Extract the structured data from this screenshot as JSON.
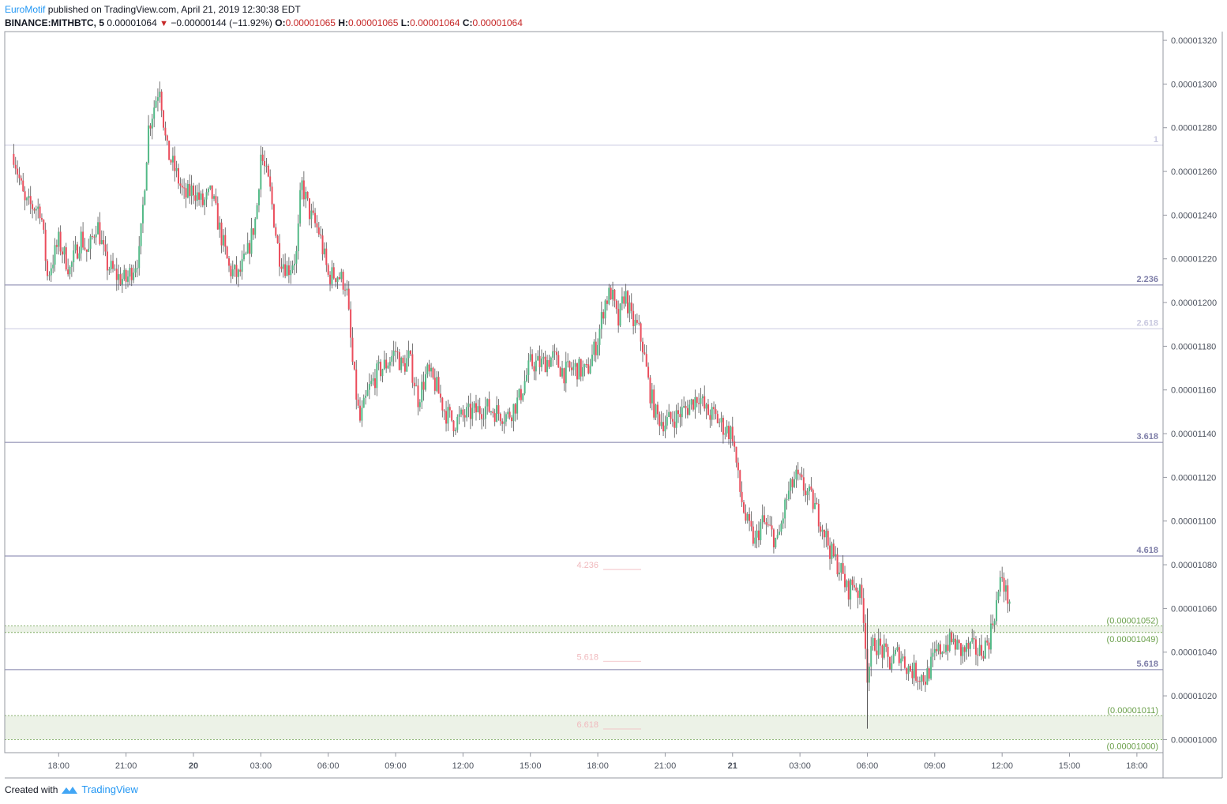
{
  "header": {
    "author": "EuroMotif",
    "published_text": "published on TradingView.com, April 21, 2019 12:30:38 EDT",
    "symbol": "BINANCE:MITHBTC, 5",
    "last": "0.00001064",
    "change": "−0.00000144 (−11.92%)",
    "o_label": "O:",
    "o_value": "0.00001065",
    "h_label": "H:",
    "h_value": "0.00001065",
    "l_label": "L:",
    "l_value": "0.00001064",
    "c_label": "C:",
    "c_value": "0.00001064"
  },
  "footer": {
    "created_with": "Created with",
    "brand": "TradingView"
  },
  "colors": {
    "up": "#53b987",
    "down": "#eb4d5c",
    "fib": "#7e7ea8",
    "zone": "#6a9f4a",
    "axis_text": "#4c525e"
  },
  "chart_data": {
    "type": "candlestick",
    "timeframe": "5",
    "y_axis": {
      "min": 9.94e-06,
      "max": 1.324e-05,
      "ticks": [
        "0.00001000",
        "0.00001020",
        "0.00001040",
        "0.00001060",
        "0.00001080",
        "0.00001100",
        "0.00001120",
        "0.00001140",
        "0.00001160",
        "0.00001180",
        "0.00001200",
        "0.00001220",
        "0.00001240",
        "0.00001260",
        "0.00001280",
        "0.00001300",
        "0.00001320"
      ]
    },
    "x_axis": {
      "ticks": [
        {
          "label": "18:00",
          "h": 18
        },
        {
          "label": "21:00",
          "h": 21
        },
        {
          "label": "20",
          "h": 24
        },
        {
          "label": "03:00",
          "h": 27
        },
        {
          "label": "06:00",
          "h": 30
        },
        {
          "label": "09:00",
          "h": 33
        },
        {
          "label": "12:00",
          "h": 36
        },
        {
          "label": "15:00",
          "h": 39
        },
        {
          "label": "18:00",
          "h": 42
        },
        {
          "label": "21:00",
          "h": 45
        },
        {
          "label": "21",
          "h": 48
        },
        {
          "label": "03:00",
          "h": 51
        },
        {
          "label": "06:00",
          "h": 54
        },
        {
          "label": "09:00",
          "h": 57
        },
        {
          "label": "12:00",
          "h": 60
        },
        {
          "label": "15:00",
          "h": 63
        },
        {
          "label": "18:00",
          "h": 66
        }
      ],
      "bold_labels": [
        "20",
        "21"
      ]
    },
    "fib_levels": [
      {
        "label": "1",
        "price": 1.272e-05,
        "faint": true
      },
      {
        "label": "2.236",
        "price": 1.208e-05,
        "faint": false
      },
      {
        "label": "2.618",
        "price": 1.188e-05,
        "faint": true
      },
      {
        "label": "3.618",
        "price": 1.136e-05,
        "faint": false
      },
      {
        "label": "4.618",
        "price": 1.084e-05,
        "faint": false
      },
      {
        "label": "5.618",
        "price": 1.032e-05,
        "faint": false
      }
    ],
    "mini_fib_labels": [
      {
        "label": "4.236",
        "price": 1.08e-05
      },
      {
        "label": "5.618",
        "price": 1.038e-05
      },
      {
        "label": "6.618",
        "price": 1.007e-05
      }
    ],
    "zones": [
      {
        "top_label": "(0.00001052)",
        "bottom_label": "(0.00001049)",
        "top": 1.052e-05,
        "bottom": 1.049e-05
      },
      {
        "top_label": "(0.00001011)",
        "bottom_label": "(0.00001000)",
        "top": 1.011e-05,
        "bottom": 1e-05
      }
    ],
    "price_path_note": "approximate close path by hour",
    "path_points": [
      {
        "h": 16.0,
        "p": 1.268e-05
      },
      {
        "h": 16.5,
        "p": 1.245e-05
      },
      {
        "h": 17.2,
        "p": 1.243e-05
      },
      {
        "h": 17.5,
        "p": 1.212e-05
      },
      {
        "h": 18.0,
        "p": 1.228e-05
      },
      {
        "h": 18.5,
        "p": 1.215e-05
      },
      {
        "h": 19.0,
        "p": 1.23e-05
      },
      {
        "h": 19.3,
        "p": 1.222e-05
      },
      {
        "h": 19.7,
        "p": 1.237e-05
      },
      {
        "h": 20.1,
        "p": 1.218e-05
      },
      {
        "h": 20.6,
        "p": 1.212e-05
      },
      {
        "h": 21.0,
        "p": 1.21e-05
      },
      {
        "h": 21.6,
        "p": 1.222e-05
      },
      {
        "h": 22.0,
        "p": 1.28e-05
      },
      {
        "h": 22.5,
        "p": 1.3e-05
      },
      {
        "h": 22.8,
        "p": 1.27e-05
      },
      {
        "h": 23.2,
        "p": 1.26e-05
      },
      {
        "h": 23.6,
        "p": 1.248e-05
      },
      {
        "h": 24.0,
        "p": 1.252e-05
      },
      {
        "h": 24.4,
        "p": 1.245e-05
      },
      {
        "h": 24.8,
        "p": 1.25e-05
      },
      {
        "h": 25.2,
        "p": 1.232e-05
      },
      {
        "h": 25.6,
        "p": 1.215e-05
      },
      {
        "h": 26.0,
        "p": 1.212e-05
      },
      {
        "h": 26.4,
        "p": 1.222e-05
      },
      {
        "h": 26.8,
        "p": 1.24e-05
      },
      {
        "h": 27.0,
        "p": 1.268e-05
      },
      {
        "h": 27.4,
        "p": 1.252e-05
      },
      {
        "h": 27.8,
        "p": 1.222e-05
      },
      {
        "h": 28.2,
        "p": 1.215e-05
      },
      {
        "h": 28.6,
        "p": 1.222e-05
      },
      {
        "h": 28.8,
        "p": 1.255e-05
      },
      {
        "h": 29.2,
        "p": 1.24e-05
      },
      {
        "h": 29.6,
        "p": 1.232e-05
      },
      {
        "h": 30.0,
        "p": 1.212e-05
      },
      {
        "h": 30.4,
        "p": 1.213e-05
      },
      {
        "h": 30.8,
        "p": 1.208e-05
      },
      {
        "h": 31.1,
        "p": 1.17e-05
      },
      {
        "h": 31.4,
        "p": 1.145e-05
      },
      {
        "h": 31.8,
        "p": 1.16e-05
      },
      {
        "h": 32.2,
        "p": 1.168e-05
      },
      {
        "h": 32.6,
        "p": 1.172e-05
      },
      {
        "h": 33.0,
        "p": 1.178e-05
      },
      {
        "h": 33.3,
        "p": 1.17e-05
      },
      {
        "h": 33.6,
        "p": 1.175e-05
      },
      {
        "h": 34.0,
        "p": 1.156e-05
      },
      {
        "h": 34.4,
        "p": 1.168e-05
      },
      {
        "h": 34.8,
        "p": 1.162e-05
      },
      {
        "h": 35.2,
        "p": 1.15e-05
      },
      {
        "h": 35.6,
        "p": 1.145e-05
      },
      {
        "h": 36.0,
        "p": 1.148e-05
      },
      {
        "h": 36.5,
        "p": 1.15e-05
      },
      {
        "h": 37.0,
        "p": 1.152e-05
      },
      {
        "h": 37.5,
        "p": 1.15e-05
      },
      {
        "h": 38.0,
        "p": 1.148e-05
      },
      {
        "h": 38.5,
        "p": 1.156e-05
      },
      {
        "h": 39.0,
        "p": 1.172e-05
      },
      {
        "h": 39.5,
        "p": 1.172e-05
      },
      {
        "h": 40.0,
        "p": 1.175e-05
      },
      {
        "h": 40.5,
        "p": 1.168e-05
      },
      {
        "h": 41.0,
        "p": 1.17e-05
      },
      {
        "h": 41.5,
        "p": 1.168e-05
      },
      {
        "h": 42.0,
        "p": 1.183e-05
      },
      {
        "h": 42.3,
        "p": 1.2e-05
      },
      {
        "h": 42.6,
        "p": 1.205e-05
      },
      {
        "h": 42.9,
        "p": 1.19e-05
      },
      {
        "h": 43.2,
        "p": 1.205e-05
      },
      {
        "h": 43.5,
        "p": 1.192e-05
      },
      {
        "h": 43.8,
        "p": 1.188e-05
      },
      {
        "h": 44.0,
        "p": 1.18e-05
      },
      {
        "h": 44.3,
        "p": 1.16e-05
      },
      {
        "h": 44.6,
        "p": 1.148e-05
      },
      {
        "h": 45.0,
        "p": 1.145e-05
      },
      {
        "h": 45.5,
        "p": 1.148e-05
      },
      {
        "h": 46.0,
        "p": 1.152e-05
      },
      {
        "h": 46.5,
        "p": 1.158e-05
      },
      {
        "h": 46.8,
        "p": 1.15e-05
      },
      {
        "h": 47.2,
        "p": 1.148e-05
      },
      {
        "h": 47.6,
        "p": 1.143e-05
      },
      {
        "h": 48.0,
        "p": 1.14e-05
      },
      {
        "h": 48.3,
        "p": 1.115e-05
      },
      {
        "h": 48.6,
        "p": 1.1e-05
      },
      {
        "h": 49.0,
        "p": 1.09e-05
      },
      {
        "h": 49.3,
        "p": 1.1e-05
      },
      {
        "h": 49.7,
        "p": 1.095e-05
      },
      {
        "h": 50.0,
        "p": 1.09e-05
      },
      {
        "h": 50.4,
        "p": 1.11e-05
      },
      {
        "h": 50.8,
        "p": 1.12e-05
      },
      {
        "h": 51.2,
        "p": 1.115e-05
      },
      {
        "h": 51.6,
        "p": 1.108e-05
      },
      {
        "h": 52.0,
        "p": 1.098e-05
      },
      {
        "h": 52.4,
        "p": 1.085e-05
      },
      {
        "h": 52.8,
        "p": 1.078e-05
      },
      {
        "h": 53.1,
        "p": 1.068e-05
      },
      {
        "h": 53.4,
        "p": 1.072e-05
      },
      {
        "h": 53.8,
        "p": 1.063e-05
      },
      {
        "h": 54.0,
        "p": 1.03e-05
      },
      {
        "h": 54.3,
        "p": 1.045e-05
      },
      {
        "h": 54.7,
        "p": 1.04e-05
      },
      {
        "h": 55.0,
        "p": 1.035e-05
      },
      {
        "h": 55.4,
        "p": 1.04e-05
      },
      {
        "h": 55.8,
        "p": 1.033e-05
      },
      {
        "h": 56.2,
        "p": 1.03e-05
      },
      {
        "h": 56.6,
        "p": 1.028e-05
      },
      {
        "h": 57.0,
        "p": 1.038e-05
      },
      {
        "h": 57.4,
        "p": 1.043e-05
      },
      {
        "h": 57.8,
        "p": 1.045e-05
      },
      {
        "h": 58.2,
        "p": 1.04e-05
      },
      {
        "h": 58.6,
        "p": 1.042e-05
      },
      {
        "h": 59.0,
        "p": 1.04e-05
      },
      {
        "h": 59.4,
        "p": 1.045e-05
      },
      {
        "h": 59.7,
        "p": 1.06e-05
      },
      {
        "h": 60.0,
        "p": 1.075e-05
      },
      {
        "h": 60.2,
        "p": 1.065e-05
      },
      {
        "h": 60.4,
        "p": 1.064e-05
      }
    ]
  }
}
